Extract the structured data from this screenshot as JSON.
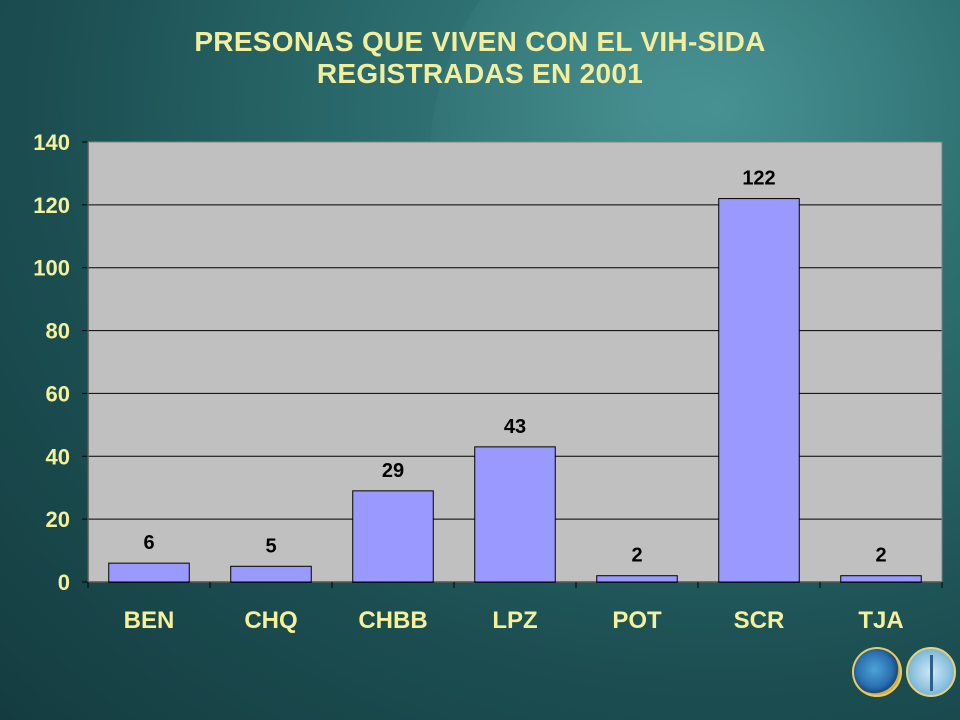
{
  "title_line1": "PRESONAS QUE VIVEN CON EL VIH-SIDA",
  "title_line2": "REGISTRADAS EN 2001",
  "colors": {
    "bar": "#9999ff",
    "plot_bg": "#c0c0c0",
    "title": "#f2ee9c",
    "axis_text": "#f5f09a",
    "data_label": "#000000"
  },
  "icons": [
    "paho-logo-icon",
    "who-logo-icon"
  ],
  "chart_data": {
    "type": "bar",
    "categories": [
      "BEN",
      "CHQ",
      "CHBB",
      "LPZ",
      "POT",
      "SCR",
      "TJA"
    ],
    "values": [
      6,
      5,
      29,
      43,
      2,
      122,
      2
    ],
    "data_labels": [
      "6",
      "5",
      "29",
      "43",
      "2",
      "122",
      "2"
    ],
    "title": "PRESONAS QUE VIVEN CON EL VIH-SIDA REGISTRADAS EN 2001",
    "xlabel": "",
    "ylabel": "",
    "ylim": [
      0,
      140
    ],
    "yticks": [
      0,
      20,
      40,
      60,
      80,
      100,
      120,
      140
    ],
    "grid": true,
    "legend": "none"
  }
}
